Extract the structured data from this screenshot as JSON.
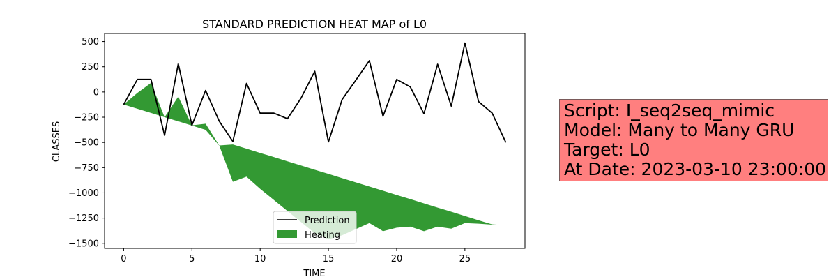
{
  "colors": {
    "prediction": "#000000",
    "heating": "#339933",
    "info_box_bg": "#ff7f7f"
  },
  "info_box": {
    "lines": [
      "Script: I_seq2seq_mimic",
      "Model: Many to Many GRU",
      "Target: L0",
      "At Date: 2023-03-10 23:00:00"
    ]
  },
  "chart_data": {
    "type": "line",
    "title": "STANDARD PREDICTION HEAT MAP of L0",
    "xlabel": "TIME",
    "ylabel": "CLASSES",
    "xlim": [
      -1.4,
      29.4
    ],
    "ylim": [
      -1550,
      580
    ],
    "x_ticks": [
      0,
      5,
      10,
      15,
      20,
      25
    ],
    "y_ticks": [
      500,
      250,
      0,
      -250,
      -500,
      -750,
      -1000,
      -1250,
      -1500
    ],
    "grid": false,
    "legend_position": "bottom-center",
    "series": [
      {
        "name": "Prediction",
        "kind": "line",
        "x": [
          0,
          1,
          2,
          3,
          4,
          5,
          6,
          7,
          8,
          9,
          10,
          11,
          12,
          13,
          14,
          15,
          16,
          17,
          18,
          19,
          20,
          21,
          22,
          23,
          24,
          25,
          26,
          27,
          28
        ],
        "y": [
          -125,
          125,
          125,
          -430,
          280,
          -330,
          15,
          -290,
          -490,
          85,
          -210,
          -210,
          -265,
          -60,
          205,
          -495,
          -75,
          115,
          310,
          -240,
          125,
          50,
          -215,
          275,
          -140,
          485,
          -95,
          -210,
          -500
        ]
      },
      {
        "name": "Heating",
        "kind": "area",
        "x": [
          0,
          1,
          2,
          3,
          4,
          5,
          6,
          7,
          8,
          9,
          10,
          11,
          12,
          13,
          14,
          15,
          16,
          17,
          18,
          19,
          20,
          21,
          22,
          23,
          24,
          25,
          26,
          27,
          28
        ],
        "upper": [
          -125,
          -10,
          90,
          -250,
          -45,
          -330,
          -315,
          -530,
          -520,
          -562,
          -604,
          -645,
          -687,
          -729,
          -771,
          -812,
          -854,
          -896,
          -937,
          -979,
          -1021,
          -1062,
          -1104,
          -1146,
          -1187,
          -1229,
          -1271,
          -1312,
          -1320
        ],
        "lower": [
          -125,
          -166,
          -208,
          -250,
          -291,
          -333,
          -375,
          -532,
          -890,
          -840,
          -960,
          -1070,
          -1180,
          -1290,
          -1400,
          -1460,
          -1420,
          -1360,
          -1300,
          -1380,
          -1345,
          -1335,
          -1380,
          -1335,
          -1355,
          -1300,
          -1305,
          -1315,
          -1320
        ]
      }
    ]
  }
}
